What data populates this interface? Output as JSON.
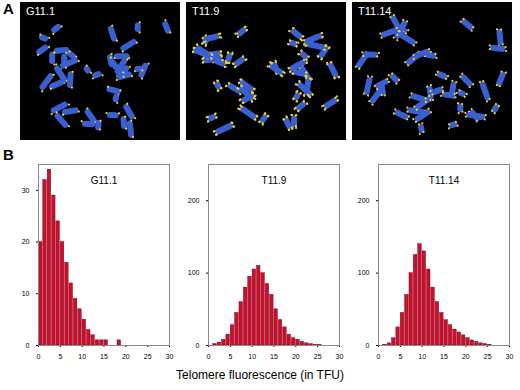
{
  "figure": {
    "panel_labels": [
      "A",
      "B"
    ],
    "images": [
      "G11.1",
      "T11.9",
      "T11.14"
    ],
    "x_label": "Telomere fluorescence (in TFU)"
  },
  "chart_data": [
    {
      "type": "histogram",
      "title": "G11.1",
      "color": "#c8102e",
      "bins": [
        0,
        1,
        2,
        3,
        4,
        5,
        6,
        7,
        8,
        9,
        10,
        11,
        12,
        13,
        14,
        15,
        16,
        17,
        18,
        19,
        20,
        21,
        22,
        23,
        24,
        25,
        26,
        27,
        28,
        29,
        30
      ],
      "values": [
        20,
        32,
        34,
        29,
        24,
        20,
        16,
        12,
        9,
        7,
        5,
        3,
        2,
        1,
        1,
        1,
        0,
        0,
        1,
        0,
        0,
        0,
        0,
        0,
        0,
        0,
        0,
        0,
        0,
        0
      ],
      "xlim": [
        0,
        30
      ],
      "xticks": [
        0,
        5,
        10,
        15,
        20,
        25,
        30
      ],
      "ylim": [
        0,
        35
      ],
      "yticks": [
        0,
        10,
        20,
        30
      ]
    },
    {
      "type": "histogram",
      "title": "T11.9",
      "color": "#c8102e",
      "bins": [
        0,
        1,
        2,
        3,
        4,
        5,
        6,
        7,
        8,
        9,
        10,
        11,
        12,
        13,
        14,
        15,
        16,
        17,
        18,
        19,
        20,
        21,
        22,
        23,
        24,
        25,
        26,
        27,
        28,
        29,
        30
      ],
      "values": [
        0,
        2,
        4,
        8,
        15,
        28,
        45,
        60,
        80,
        95,
        105,
        110,
        100,
        85,
        70,
        50,
        35,
        25,
        15,
        10,
        8,
        5,
        3,
        2,
        1,
        1,
        0,
        0,
        0,
        0
      ],
      "xlim": [
        0,
        30
      ],
      "xticks": [
        0,
        5,
        10,
        15,
        20,
        25,
        30
      ],
      "ylim": [
        0,
        250
      ],
      "yticks": [
        0,
        100,
        200
      ]
    },
    {
      "type": "histogram",
      "title": "T11.14",
      "color": "#c8102e",
      "bins": [
        0,
        1,
        2,
        3,
        4,
        5,
        6,
        7,
        8,
        9,
        10,
        11,
        12,
        13,
        14,
        15,
        16,
        17,
        18,
        19,
        20,
        21,
        22,
        23,
        24,
        25,
        26,
        27,
        28,
        29,
        30
      ],
      "values": [
        0,
        1,
        3,
        10,
        25,
        45,
        70,
        100,
        125,
        140,
        130,
        105,
        80,
        60,
        45,
        35,
        28,
        22,
        18,
        14,
        10,
        7,
        5,
        3,
        2,
        1,
        0,
        0,
        0,
        0
      ],
      "xlim": [
        0,
        30
      ],
      "xticks": [
        0,
        5,
        10,
        15,
        20,
        25,
        30
      ],
      "ylim": [
        0,
        250
      ],
      "yticks": [
        0,
        100,
        200
      ]
    }
  ]
}
